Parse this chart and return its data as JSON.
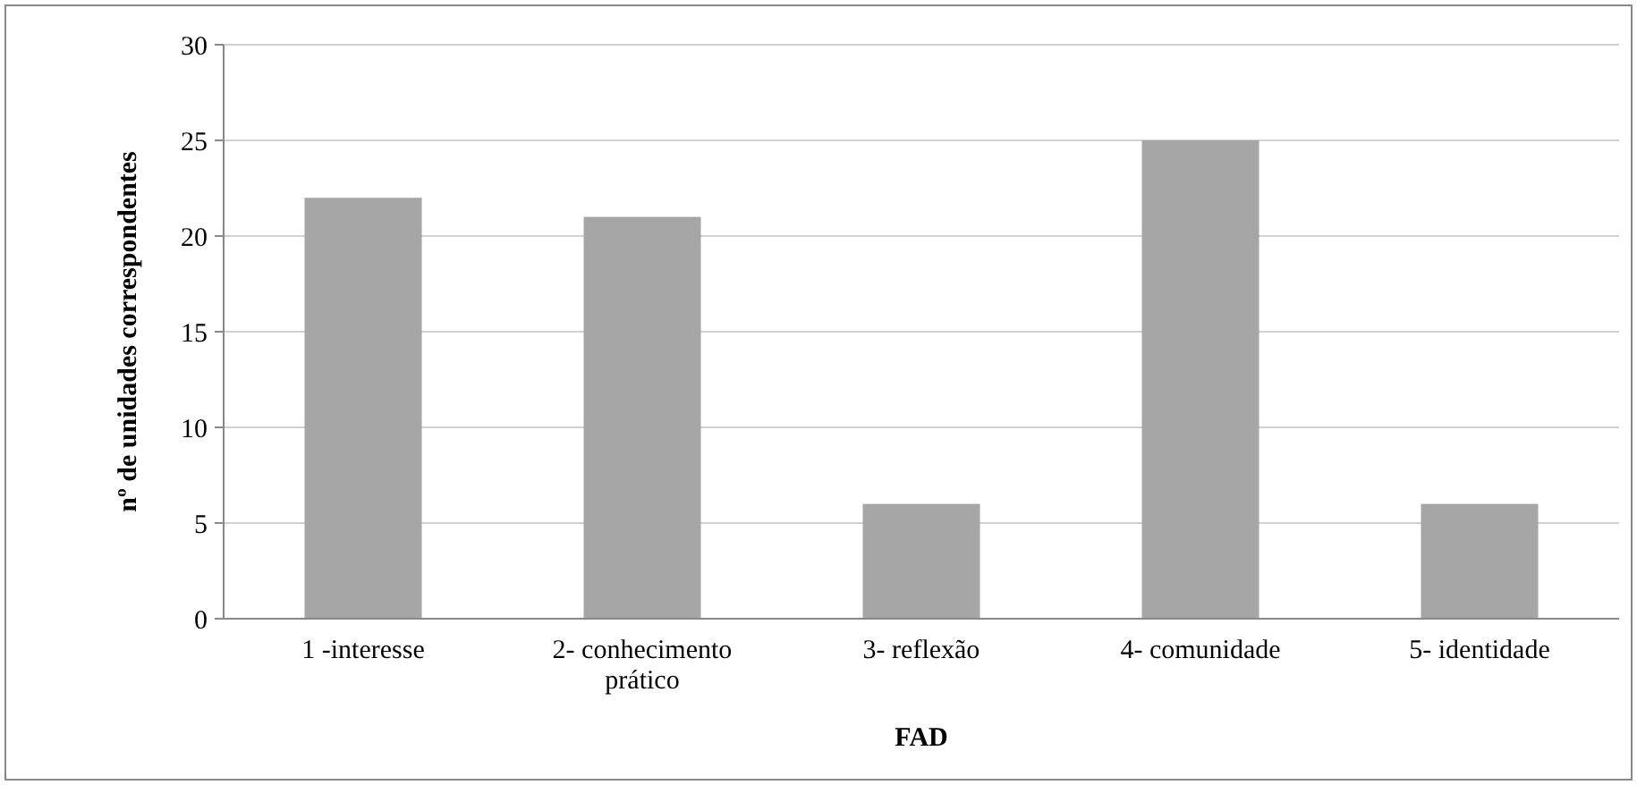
{
  "chart_data": {
    "type": "bar",
    "xlabel": "FAD",
    "ylabel": "nº de unidades correspondentes",
    "categories": [
      "1 -interesse",
      "2- conhecimento prático",
      "3- reflexão",
      "4- comunidade",
      "5- identidade"
    ],
    "values": [
      22,
      21,
      6,
      25,
      6
    ],
    "color": "#a6a6a6",
    "ylim": [
      0,
      30
    ],
    "yticks": [
      0,
      5,
      10,
      15,
      20,
      25,
      30
    ],
    "grid": "y"
  }
}
